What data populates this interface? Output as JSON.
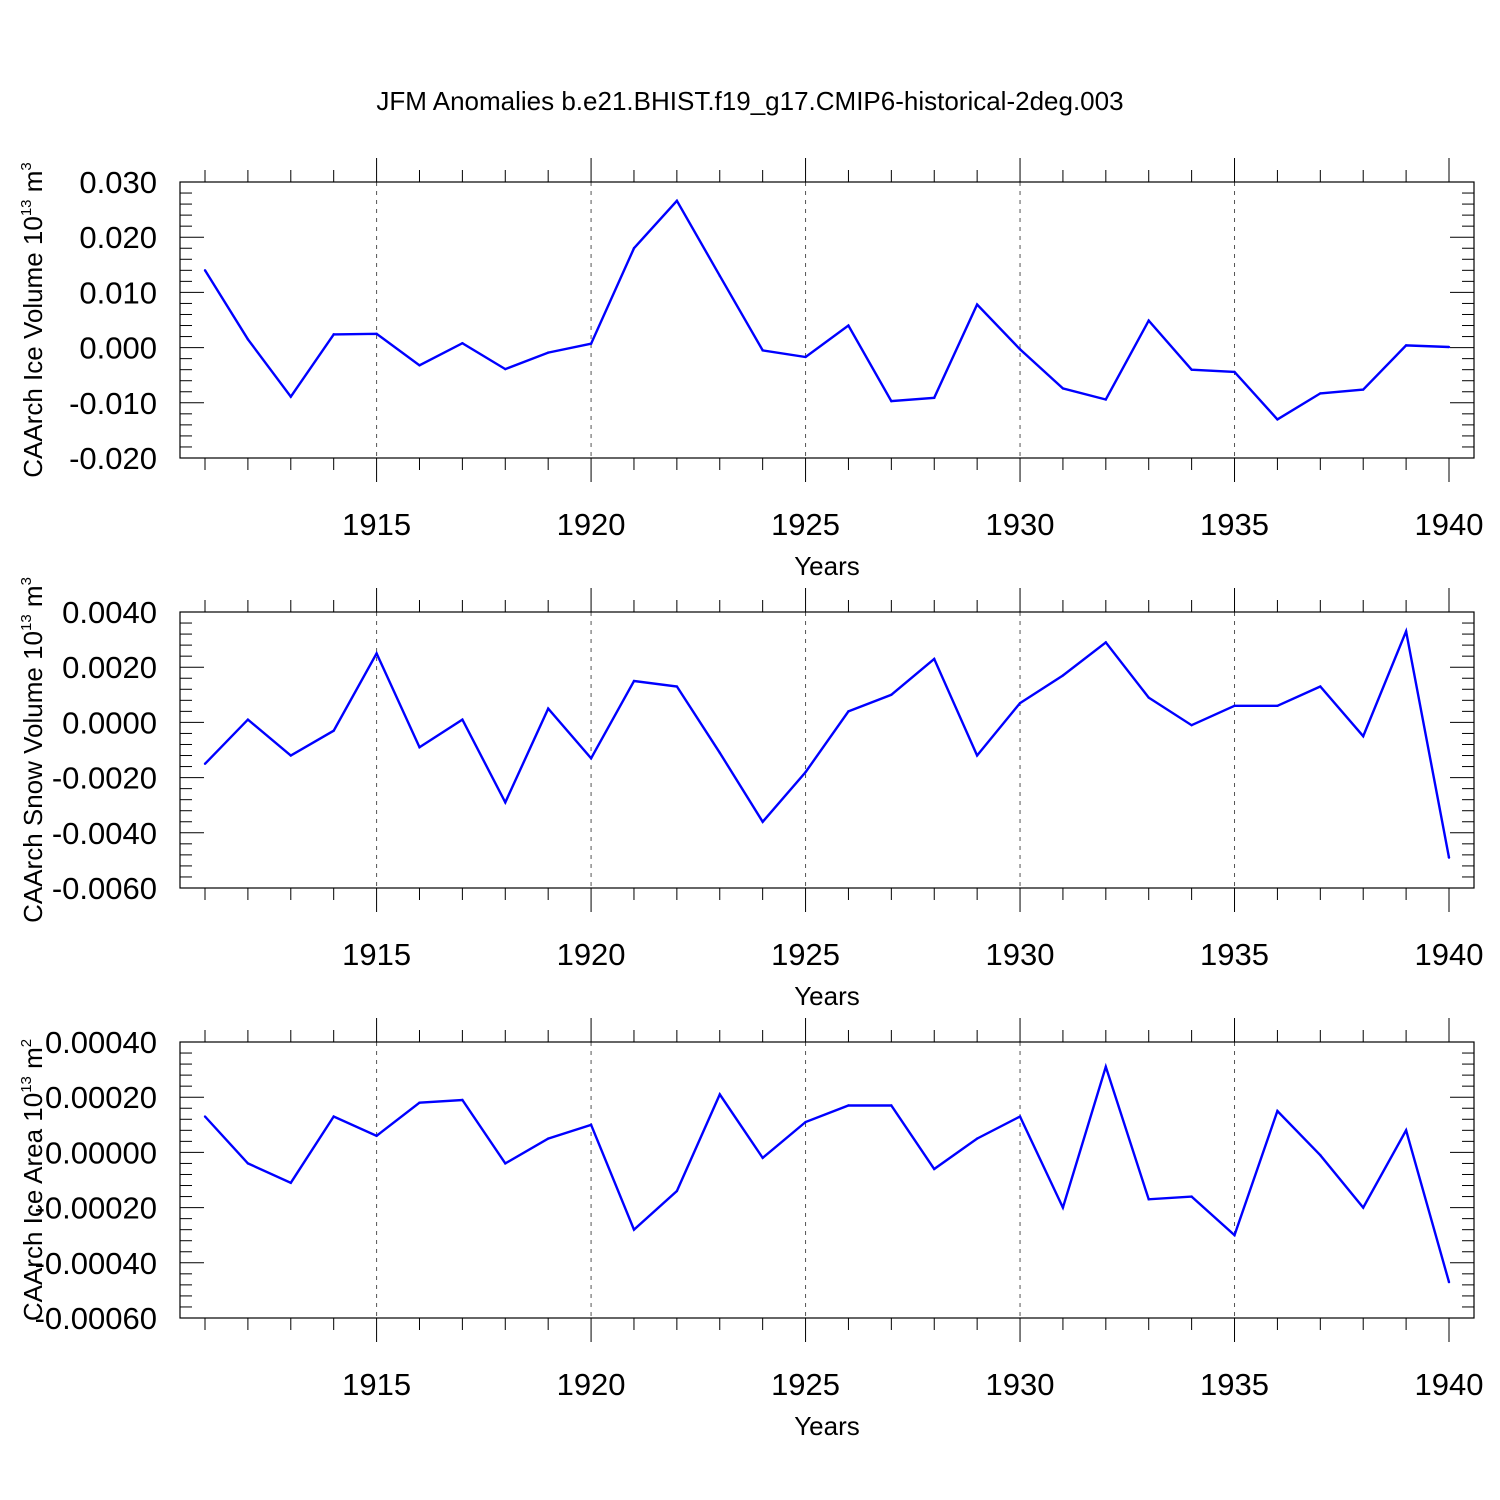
{
  "figure": {
    "title": "JFM Anomalies b.e21.BHIST.f19_g17.CMIP6-historical-2deg.003",
    "series_color": "#0000ff"
  },
  "chart_data": [
    {
      "type": "line",
      "name": "ice-volume",
      "ylabel": "CAArch Ice Volume 10",
      "ylabel_exp": "13",
      "ylabel_unit": " m",
      "ylabel_unit_exp": "3",
      "xlabel": "Years",
      "xlim": [
        1911,
        1940
      ],
      "ylim": [
        -0.02,
        0.03
      ],
      "xticks": [
        1915,
        1920,
        1925,
        1930,
        1935,
        1940
      ],
      "xtick_labels": [
        "1915",
        "1920",
        "1925",
        "1930",
        "1935",
        "1940"
      ],
      "yticks": [
        -0.02,
        -0.01,
        0.0,
        0.01,
        0.02,
        0.03
      ],
      "ytick_labels": [
        "-0.020",
        "-0.010",
        "0.000",
        "0.010",
        "0.020",
        "0.030"
      ],
      "vgrid": "dashed at major x ticks",
      "x": [
        1911,
        1912,
        1913,
        1914,
        1915,
        1916,
        1917,
        1918,
        1919,
        1920,
        1921,
        1922,
        1923,
        1924,
        1925,
        1926,
        1927,
        1928,
        1929,
        1930,
        1931,
        1932,
        1933,
        1934,
        1935,
        1936,
        1937,
        1938,
        1939,
        1940
      ],
      "y": [
        0.014,
        0.0015,
        -0.0089,
        0.0024,
        0.0025,
        -0.0032,
        0.0008,
        -0.0039,
        -0.0009,
        0.0007,
        0.018,
        0.0266,
        0.013,
        -0.0005,
        -0.0017,
        0.004,
        -0.0097,
        -0.0091,
        0.0078,
        -0.0003,
        -0.0074,
        -0.0094,
        0.0049,
        -0.004,
        -0.0044,
        -0.013,
        -0.0083,
        -0.0076,
        0.0004,
        0.0001
      ]
    },
    {
      "type": "line",
      "name": "snow-volume",
      "ylabel": "CAArch Snow Volume 10",
      "ylabel_exp": "13",
      "ylabel_unit": " m",
      "ylabel_unit_exp": "3",
      "xlabel": "Years",
      "xlim": [
        1911,
        1940
      ],
      "ylim": [
        -0.006,
        0.004
      ],
      "xticks": [
        1915,
        1920,
        1925,
        1930,
        1935,
        1940
      ],
      "xtick_labels": [
        "1915",
        "1920",
        "1925",
        "1930",
        "1935",
        "1940"
      ],
      "yticks": [
        -0.006,
        -0.004,
        -0.002,
        0.0,
        0.002,
        0.004
      ],
      "ytick_labels": [
        "-0.0060",
        "-0.0040",
        "-0.0020",
        "0.0000",
        "0.0020",
        "0.0040"
      ],
      "vgrid": "dashed at major x ticks",
      "x": [
        1911,
        1912,
        1913,
        1914,
        1915,
        1916,
        1917,
        1918,
        1919,
        1920,
        1921,
        1922,
        1923,
        1924,
        1925,
        1926,
        1927,
        1928,
        1929,
        1930,
        1931,
        1932,
        1933,
        1934,
        1935,
        1936,
        1937,
        1938,
        1939,
        1940
      ],
      "y": [
        -0.0015,
        0.0001,
        -0.0012,
        -0.0003,
        0.0025,
        -0.0009,
        0.0001,
        -0.0029,
        0.0005,
        -0.0013,
        0.0015,
        0.0013,
        -0.0011,
        -0.0036,
        -0.0018,
        0.0004,
        0.001,
        0.0023,
        -0.0012,
        0.0007,
        0.0017,
        0.0029,
        0.0009,
        -0.0001,
        0.0006,
        0.0006,
        0.0013,
        -0.0005,
        0.0033,
        -0.0049
      ]
    },
    {
      "type": "line",
      "name": "ice-area",
      "ylabel": "CAArch Ice Area 10",
      "ylabel_exp": "13",
      "ylabel_unit": " m",
      "ylabel_unit_exp": "2",
      "xlabel": "Years",
      "xlim": [
        1911,
        1940
      ],
      "ylim": [
        -0.0006,
        0.0004
      ],
      "xticks": [
        1915,
        1920,
        1925,
        1930,
        1935,
        1940
      ],
      "xtick_labels": [
        "1915",
        "1920",
        "1925",
        "1930",
        "1935",
        "1940"
      ],
      "yticks": [
        -0.0006,
        -0.0004,
        -0.0002,
        0.0,
        0.0002,
        0.0004
      ],
      "ytick_labels": [
        "-0.00060",
        "-0.00040",
        "-0.00020",
        "0.00000",
        "0.00020",
        "0.00040"
      ],
      "vgrid": "dashed at major x ticks",
      "x": [
        1911,
        1912,
        1913,
        1914,
        1915,
        1916,
        1917,
        1918,
        1919,
        1920,
        1921,
        1922,
        1923,
        1924,
        1925,
        1926,
        1927,
        1928,
        1929,
        1930,
        1931,
        1932,
        1933,
        1934,
        1935,
        1936,
        1937,
        1938,
        1939,
        1940
      ],
      "y": [
        0.00013,
        -4e-05,
        -0.00011,
        0.00013,
        6e-05,
        0.00018,
        0.00019,
        -4e-05,
        5e-05,
        0.0001,
        -0.00028,
        -0.00014,
        0.00021,
        -2e-05,
        0.00011,
        0.00017,
        0.00017,
        -6e-05,
        5e-05,
        0.00013,
        -0.0002,
        0.00031,
        -0.00017,
        -0.00016,
        -0.0003,
        0.00015,
        -1e-05,
        -0.0002,
        8e-05,
        -0.00047
      ]
    }
  ]
}
